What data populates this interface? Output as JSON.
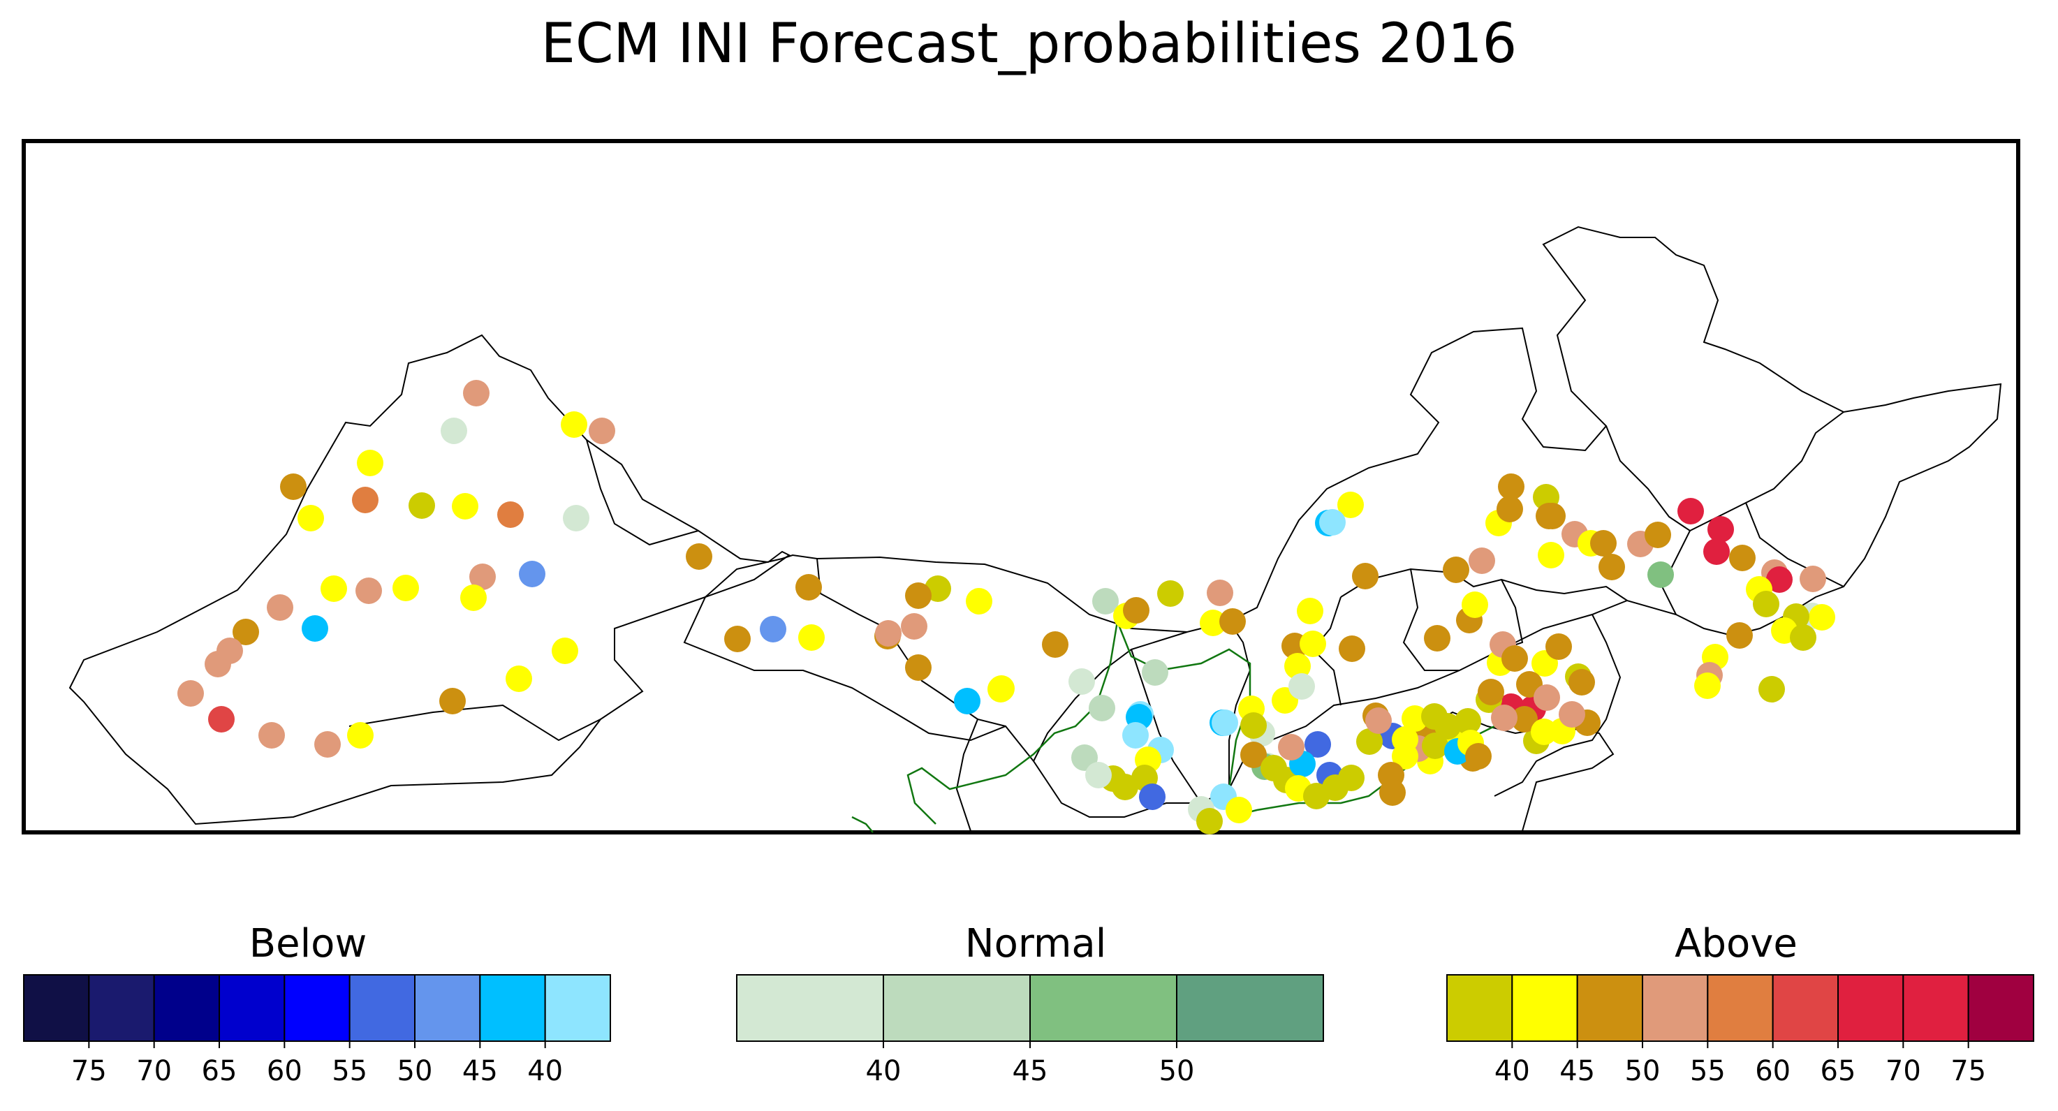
{
  "title": "ECM INI Forecast_probabilities 2016",
  "colors": {
    "below": [
      "#101046",
      "#1a1a6e",
      "#00008b",
      "#0000cd",
      "#0000ff",
      "#4169e1",
      "#6495ed",
      "#00bfff",
      "#8ee5ff"
    ],
    "normal": [
      "#d3e8d3",
      "#bddbbd",
      "#80c080",
      "#60a080"
    ],
    "above": [
      "#cccc00",
      "#ffff00",
      "#cc9010",
      "#e09a7a",
      "#e07e40",
      "#e04545",
      "#e0203f",
      "#e02040",
      "#a00040"
    ]
  },
  "legends": {
    "below": {
      "label": "Below",
      "ticks": [
        "75",
        "70",
        "65",
        "60",
        "55",
        "50",
        "45",
        "40"
      ]
    },
    "normal": {
      "label": "Normal",
      "ticks": [
        "40",
        "45",
        "50"
      ]
    },
    "above": {
      "label": "Above",
      "ticks": [
        "40",
        "45",
        "50",
        "55",
        "60",
        "65",
        "70",
        "75"
      ]
    }
  },
  "stations": [
    [
      "above",
      3
    ],
    [
      "normal",
      0
    ],
    [
      "above",
      1
    ],
    [
      "above",
      3
    ],
    [
      "above",
      1
    ],
    [
      "above",
      2
    ],
    [
      "above",
      1
    ],
    [
      "above",
      4
    ],
    [
      "above",
      0
    ],
    [
      "above",
      1
    ],
    [
      "normal",
      0
    ],
    [
      "above",
      2
    ],
    [
      "below",
      6
    ],
    [
      "above",
      3
    ],
    [
      "above",
      1
    ],
    [
      "above",
      1
    ],
    [
      "above",
      3
    ],
    [
      "above",
      3
    ],
    [
      "below",
      7
    ],
    [
      "above",
      2
    ],
    [
      "above",
      3
    ],
    [
      "above",
      3
    ],
    [
      "above",
      5
    ],
    [
      "above",
      2
    ],
    [
      "above",
      3
    ],
    [
      "above",
      3
    ],
    [
      "above",
      3
    ],
    [
      "above",
      1
    ],
    [
      "above",
      1
    ],
    [
      "above",
      1
    ],
    [
      "above",
      4
    ],
    [
      "above",
      1
    ],
    [
      "above",
      0
    ],
    [
      "above",
      2
    ],
    [
      "above",
      2
    ],
    [
      "above",
      1
    ],
    [
      "above",
      2
    ],
    [
      "above",
      2
    ],
    [
      "below",
      6
    ],
    [
      "above",
      3
    ],
    [
      "above",
      3
    ],
    [
      "above",
      2
    ],
    [
      "above",
      1
    ],
    [
      "above",
      1
    ],
    [
      "normal",
      1
    ],
    [
      "above",
      1
    ],
    [
      "above",
      2
    ],
    [
      "above",
      2
    ],
    [
      "above",
      0
    ],
    [
      "above",
      1
    ],
    [
      "normal",
      1
    ],
    [
      "above",
      2
    ],
    [
      "above",
      1
    ],
    [
      "below",
      7
    ],
    [
      "above",
      1
    ],
    [
      "normal",
      0
    ],
    [
      "normal",
      1
    ],
    [
      "below",
      8
    ],
    [
      "above",
      2
    ],
    [
      "above",
      1
    ],
    [
      "above",
      3
    ],
    [
      "normal",
      0
    ],
    [
      "below",
      7
    ],
    [
      "below",
      8
    ],
    [
      "below",
      8
    ],
    [
      "normal",
      1
    ],
    [
      "above",
      1
    ],
    [
      "above",
      0
    ],
    [
      "below",
      5
    ],
    [
      "above",
      0
    ],
    [
      "above",
      0
    ],
    [
      "normal",
      0
    ],
    [
      "below",
      7
    ],
    [
      "above",
      1
    ],
    [
      "normal",
      0
    ],
    [
      "below",
      8
    ],
    [
      "above",
      0
    ],
    [
      "above",
      1
    ],
    [
      "above",
      1
    ],
    [
      "below",
      7
    ],
    [
      "above",
      1
    ],
    [
      "below",
      8
    ],
    [
      "above",
      2
    ],
    [
      "above",
      2
    ],
    [
      "below",
      5
    ],
    [
      "above",
      0
    ],
    [
      "normal",
      0
    ],
    [
      "above",
      2
    ],
    [
      "above",
      1
    ],
    [
      "above",
      2
    ],
    [
      "above",
      3
    ],
    [
      "above",
      1
    ],
    [
      "above",
      2
    ],
    [
      "above",
      0
    ],
    [
      "above",
      0
    ],
    [
      "above",
      1
    ],
    [
      "above",
      2
    ],
    [
      "above",
      2
    ],
    [
      "above",
      0
    ],
    [
      "below",
      5
    ],
    [
      "below",
      5
    ],
    [
      "above",
      0
    ],
    [
      "below",
      8
    ],
    [
      "normal",
      0
    ],
    [
      "above",
      0
    ],
    [
      "above",
      1
    ],
    [
      "normal",
      2
    ],
    [
      "below",
      7
    ],
    [
      "above",
      3
    ],
    [
      "above",
      2
    ],
    [
      "above",
      0
    ],
    [
      "above",
      1
    ],
    [
      "above",
      0
    ],
    [
      "above",
      0
    ],
    [
      "above",
      0
    ],
    [
      "above",
      1
    ],
    [
      "above",
      1
    ],
    [
      "above",
      3
    ],
    [
      "above",
      0
    ],
    [
      "below",
      7
    ],
    [
      "above",
      1
    ],
    [
      "above",
      2
    ],
    [
      "above",
      2
    ],
    [
      "above",
      1
    ],
    [
      "above",
      3
    ],
    [
      "above",
      2
    ],
    [
      "above",
      1
    ],
    [
      "above",
      2
    ],
    [
      "above",
      0
    ],
    [
      "above",
      2
    ],
    [
      "above",
      1
    ],
    [
      "above",
      0
    ],
    [
      "above",
      2
    ],
    [
      "above",
      3
    ],
    [
      "above",
      6
    ],
    [
      "above",
      6
    ],
    [
      "above",
      2
    ],
    [
      "above",
      3
    ],
    [
      "above",
      2
    ],
    [
      "above",
      1
    ],
    [
      "above",
      0
    ],
    [
      "above",
      2
    ],
    [
      "above",
      3
    ],
    [
      "above",
      2
    ],
    [
      "above",
      1
    ],
    [
      "above",
      2
    ],
    [
      "above",
      3
    ],
    [
      "above",
      1
    ],
    [
      "above",
      2
    ],
    [
      "above",
      0
    ],
    [
      "above",
      2
    ],
    [
      "above",
      2
    ],
    [
      "above",
      2
    ],
    [
      "above",
      1
    ],
    [
      "above",
      3
    ],
    [
      "above",
      1
    ],
    [
      "above",
      2
    ],
    [
      "above",
      2
    ],
    [
      "above",
      3
    ],
    [
      "normal",
      2
    ],
    [
      "above",
      2
    ],
    [
      "above",
      6
    ],
    [
      "above",
      6
    ],
    [
      "above",
      6
    ],
    [
      "above",
      2
    ],
    [
      "above",
      3
    ],
    [
      "above",
      6
    ],
    [
      "above",
      1
    ],
    [
      "above",
      0
    ],
    [
      "normal",
      0
    ],
    [
      "above",
      1
    ],
    [
      "above",
      3
    ],
    [
      "above",
      0
    ],
    [
      "above",
      1
    ],
    [
      "above",
      0
    ],
    [
      "above",
      2
    ],
    [
      "above",
      1
    ],
    [
      "above",
      3
    ],
    [
      "above",
      1
    ],
    [
      "above",
      0
    ]
  ]
}
